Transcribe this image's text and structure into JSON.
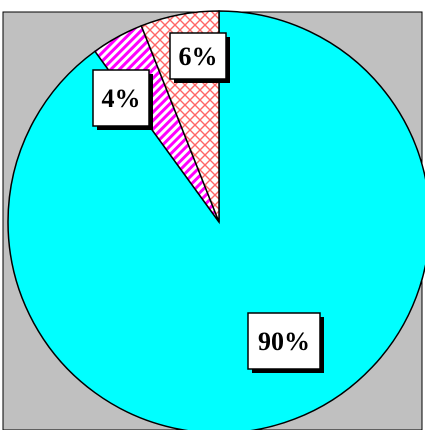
{
  "chart_data": {
    "type": "pie",
    "title": "",
    "start_angle_deg": 0,
    "direction": "counterclockwise",
    "slices": [
      {
        "label": "90%",
        "value": 90,
        "color": "#00ffff",
        "pattern": "solid"
      },
      {
        "label": "4%",
        "value": 4,
        "color": "#ff00ff",
        "pattern": "diagonal-stripes"
      },
      {
        "label": "6%",
        "value": 6,
        "color": "#ff6666",
        "pattern": "crosshatch"
      }
    ],
    "background_color": "#c0c0c0",
    "legend": "none"
  }
}
